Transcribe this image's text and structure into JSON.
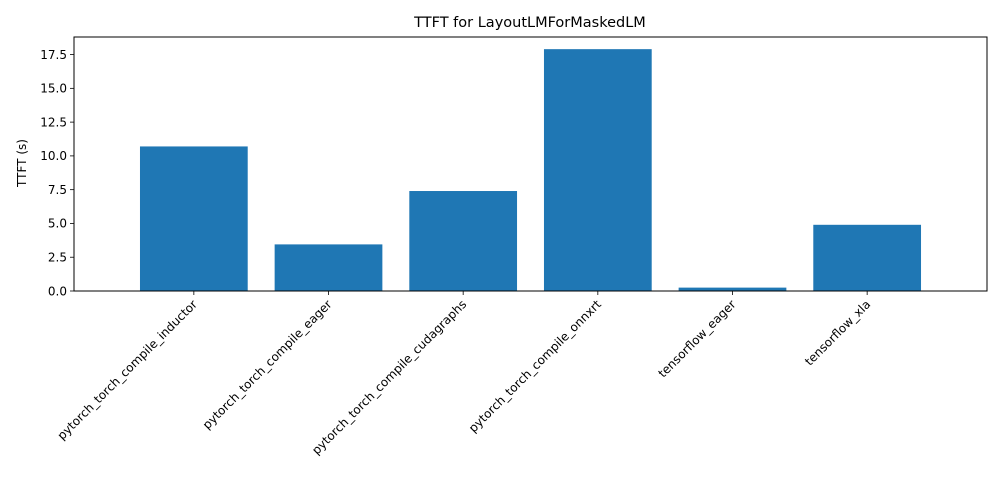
{
  "chart_data": {
    "type": "bar",
    "title": "TTFT for LayoutLMForMaskedLM",
    "xlabel": "",
    "ylabel": "TTFT (s)",
    "categories": [
      "pytorch_torch_compile_inductor",
      "pytorch_torch_compile_eager",
      "pytorch_torch_compile_cudagraphs",
      "pytorch_torch_compile_onnxrt",
      "tensorflow_eager",
      "tensorflow_xla"
    ],
    "values": [
      10.7,
      3.45,
      7.4,
      17.9,
      0.25,
      4.9
    ],
    "ylim": [
      0,
      18.8
    ],
    "yticks": [
      0.0,
      2.5,
      5.0,
      7.5,
      10.0,
      12.5,
      15.0,
      17.5
    ],
    "ytick_labels": [
      "0.0",
      "2.5",
      "5.0",
      "7.5",
      "10.0",
      "12.5",
      "15.0",
      "17.5"
    ],
    "bar_color": "#1f77b4",
    "grid": false,
    "legend": "none"
  }
}
